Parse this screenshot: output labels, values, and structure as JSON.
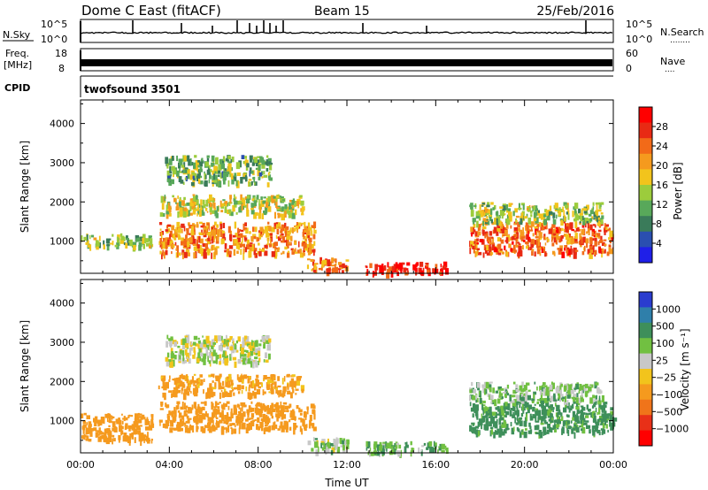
{
  "header": {
    "station": "Dome C East (fitACF)",
    "beam": "Beam 15",
    "date": "25/Feb/2016"
  },
  "top_panels": {
    "nsky": {
      "label": "N.Sky",
      "y_ticks": [
        "10^5",
        "10^0"
      ],
      "right_label": "N.Search",
      "right_label_dots": "........",
      "right_ticks": [
        "10^5",
        "10^0"
      ]
    },
    "freq": {
      "label_line1": "Freq.",
      "label_line2": "[MHz]",
      "y_ticks": [
        "18",
        "8"
      ],
      "right_label": "Nave",
      "right_label_dots": "....",
      "right_ticks": [
        "60",
        "0"
      ]
    },
    "cpid": {
      "label": "CPID",
      "value": "twofsound  3501"
    }
  },
  "colors": {
    "power_scale": [
      "#1f1fe8",
      "#2a4fb0",
      "#3a7b5a",
      "#58a85a",
      "#9ccc3c",
      "#f2c41c",
      "#f59a1e",
      "#f26a18",
      "#e82a14",
      "#ff0000"
    ],
    "velocity_scale": [
      "#2a3ccf",
      "#2f7faa",
      "#3e8f5a",
      "#71c041",
      "#c8c8c8",
      "#f2c41c",
      "#f59a1e",
      "#f0741a",
      "#e83018",
      "#ff0000"
    ]
  },
  "chart_data": [
    {
      "type": "heatmap",
      "name": "power_panel",
      "xlabel": "",
      "ylabel": "Slant Range [km]",
      "y_ticks": [
        "4000",
        "3000",
        "2000",
        "1000"
      ],
      "ylim": [
        180,
        4600
      ],
      "colorbar": {
        "label": "Power [dB]",
        "ticks": [
          "28",
          "24",
          "20",
          "16",
          "12",
          "8",
          "4"
        ],
        "range": [
          0,
          32
        ]
      },
      "scatter_regions": [
        {
          "t0": 0.0,
          "t1": 3.2,
          "r0": 900,
          "r1": 1200,
          "level": 14
        },
        {
          "t0": 3.5,
          "t1": 10.5,
          "r0": 700,
          "r1": 1500,
          "level": 22
        },
        {
          "t0": 3.5,
          "t1": 10.0,
          "r0": 1700,
          "r1": 2200,
          "level": 16
        },
        {
          "t0": 3.8,
          "t1": 8.5,
          "r0": 2500,
          "r1": 3200,
          "level": 12
        },
        {
          "t0": 10.2,
          "t1": 12.0,
          "r0": 250,
          "r1": 600,
          "level": 24
        },
        {
          "t0": 12.8,
          "t1": 16.5,
          "r0": 200,
          "r1": 480,
          "level": 30
        },
        {
          "t0": 17.5,
          "t1": 24.0,
          "r0": 700,
          "r1": 1500,
          "level": 24
        },
        {
          "t0": 17.5,
          "t1": 23.5,
          "r0": 1500,
          "r1": 2000,
          "level": 14
        }
      ]
    },
    {
      "type": "heatmap",
      "name": "velocity_panel",
      "xlabel": "Time UT",
      "ylabel": "Slant Range [km]",
      "x_ticks": [
        "00:00",
        "04:00",
        "08:00",
        "12:00",
        "16:00",
        "20:00",
        "00:00"
      ],
      "xlim": [
        0,
        24
      ],
      "y_ticks": [
        "4000",
        "3000",
        "2000",
        "1000"
      ],
      "ylim": [
        180,
        4600
      ],
      "colorbar": {
        "label": "Velocity [m s⁻¹]",
        "ticks": [
          "1000",
          "500",
          "100",
          "25",
          "−25",
          "−100",
          "−500",
          "−1000"
        ]
      },
      "scatter_regions": [
        {
          "t0": 0.0,
          "t1": 3.2,
          "r0": 500,
          "r1": 1200,
          "level": -200
        },
        {
          "t0": 3.5,
          "t1": 10.5,
          "r0": 800,
          "r1": 1500,
          "level": -300
        },
        {
          "t0": 3.5,
          "t1": 10.0,
          "r0": 1700,
          "r1": 2200,
          "level": -150
        },
        {
          "t0": 3.8,
          "t1": 8.5,
          "r0": 2500,
          "r1": 3200,
          "level": 0
        },
        {
          "t0": 10.2,
          "t1": 12.0,
          "r0": 250,
          "r1": 600,
          "level": 40
        },
        {
          "t0": 12.8,
          "t1": 16.5,
          "r0": 200,
          "r1": 480,
          "level": 80
        },
        {
          "t0": 17.5,
          "t1": 24.0,
          "r0": 700,
          "r1": 1500,
          "level": 150
        },
        {
          "t0": 17.5,
          "t1": 23.5,
          "r0": 1500,
          "r1": 2000,
          "level": 60
        }
      ]
    }
  ]
}
